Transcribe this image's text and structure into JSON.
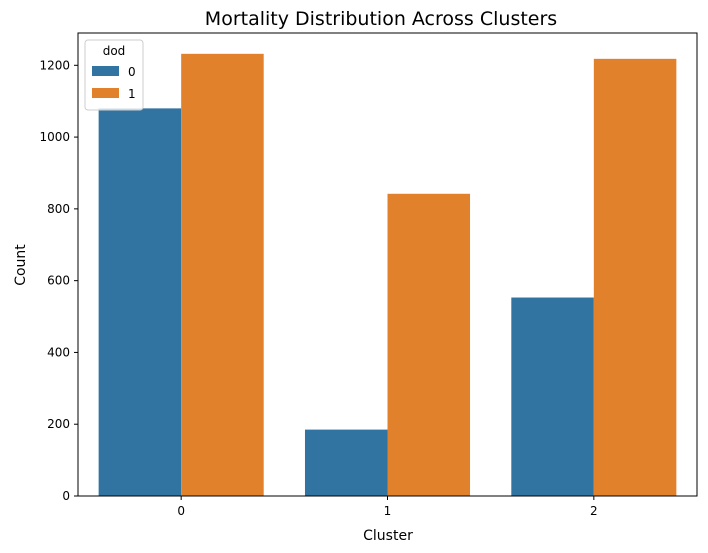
{
  "chart_data": {
    "type": "bar",
    "title": "Mortality Distribution Across Clusters",
    "xlabel": "Cluster",
    "ylabel": "Count",
    "categories": [
      "0",
      "1",
      "2"
    ],
    "series": [
      {
        "name": "0",
        "values": [
          1080,
          185,
          553
        ],
        "color": "#3274a1"
      },
      {
        "name": "1",
        "values": [
          1232,
          842,
          1218
        ],
        "color": "#e1812c"
      }
    ],
    "ylim": [
      0,
      1290
    ],
    "yticks": [
      0,
      200,
      400,
      600,
      800,
      1000,
      1200
    ],
    "legend": {
      "title": "dod",
      "placement": "top-left"
    },
    "grid": false
  }
}
